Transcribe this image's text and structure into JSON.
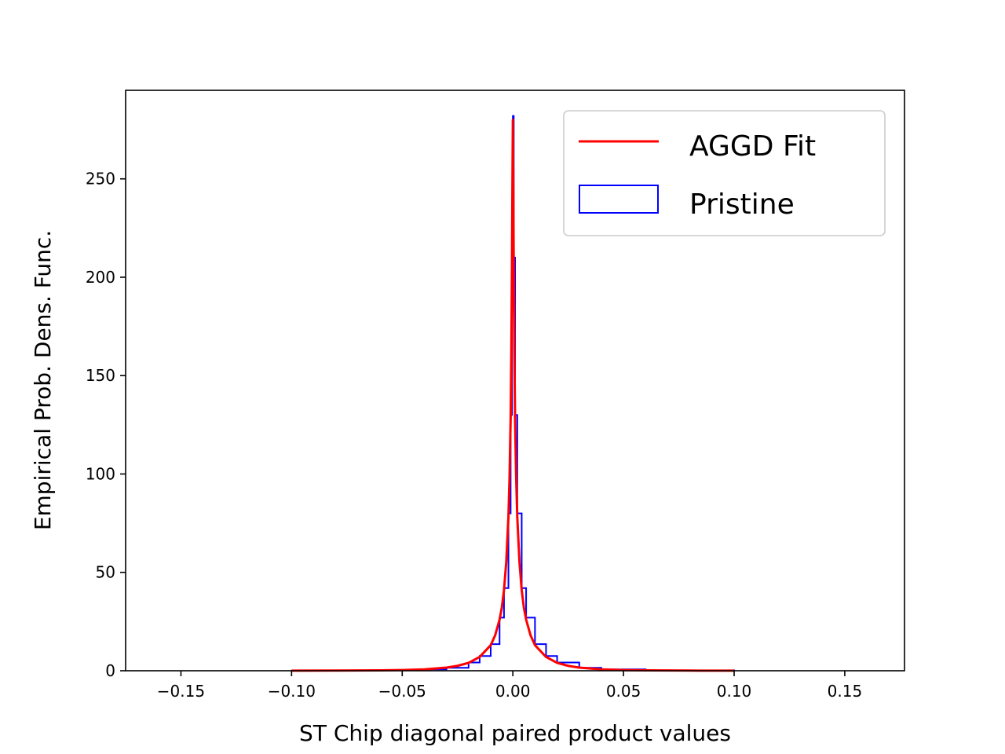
{
  "chart_data": {
    "type": "line",
    "title": "",
    "xlabel": "ST Chip diagonal paired product values",
    "ylabel": "Empirical Prob. Dens. Func.",
    "xlim": [
      -0.175,
      0.177
    ],
    "ylim": [
      0,
      295
    ],
    "xticks": [
      -0.15,
      -0.1,
      -0.05,
      0.0,
      0.05,
      0.1,
      0.15
    ],
    "xtick_labels": [
      "−0.15",
      "−0.10",
      "−0.05",
      "0.00",
      "0.05",
      "0.10",
      "0.15"
    ],
    "yticks": [
      0,
      50,
      100,
      150,
      200,
      250
    ],
    "ytick_labels": [
      "0",
      "50",
      "100",
      "150",
      "200",
      "250"
    ],
    "grid": false,
    "legend_position": "top-right",
    "series": [
      {
        "name": "AGGD Fit",
        "kind": "line",
        "color": "#ff0000",
        "x": [
          -0.1,
          -0.08,
          -0.06,
          -0.05,
          -0.04,
          -0.03,
          -0.025,
          -0.02,
          -0.015,
          -0.01,
          -0.008,
          -0.006,
          -0.005,
          -0.004,
          -0.003,
          -0.002,
          -0.0015,
          -0.001,
          -0.0007,
          -0.0004,
          -0.0002,
          0.0,
          0.0002,
          0.0004,
          0.0007,
          0.001,
          0.0015,
          0.002,
          0.003,
          0.004,
          0.005,
          0.006,
          0.008,
          0.01,
          0.015,
          0.02,
          0.025,
          0.03,
          0.04,
          0.05,
          0.06,
          0.08,
          0.1
        ],
        "y": [
          0.03,
          0.08,
          0.2,
          0.35,
          0.7,
          1.6,
          2.5,
          4.0,
          7.0,
          13.0,
          18.0,
          26.0,
          32.0,
          41.0,
          55.0,
          78.0,
          98.0,
          128.0,
          160.0,
          205.0,
          245.0,
          280.0,
          245.0,
          205.0,
          160.0,
          128.0,
          98.0,
          78.0,
          55.0,
          41.0,
          32.0,
          26.0,
          18.0,
          13.0,
          7.0,
          4.0,
          2.5,
          1.6,
          0.7,
          0.35,
          0.2,
          0.08,
          0.03
        ]
      },
      {
        "name": "Pristine",
        "kind": "histogram-step",
        "color": "#0000ff",
        "x": [
          -0.1,
          -0.06,
          -0.04,
          -0.03,
          -0.02,
          -0.015,
          -0.01,
          -0.006,
          -0.004,
          -0.002,
          -0.001,
          -0.0004,
          0.0,
          0.0004,
          0.001,
          0.002,
          0.004,
          0.006,
          0.01,
          0.015,
          0.02,
          0.03,
          0.04,
          0.06,
          0.1
        ],
        "y": [
          0.05,
          0.2,
          0.7,
          1.5,
          4.2,
          7.5,
          13.5,
          27.0,
          42.0,
          80.0,
          130.0,
          210.0,
          282.0,
          210.0,
          130.0,
          80.0,
          42.0,
          27.0,
          13.5,
          7.5,
          4.2,
          1.5,
          0.7,
          0.2,
          0.05
        ]
      }
    ]
  }
}
